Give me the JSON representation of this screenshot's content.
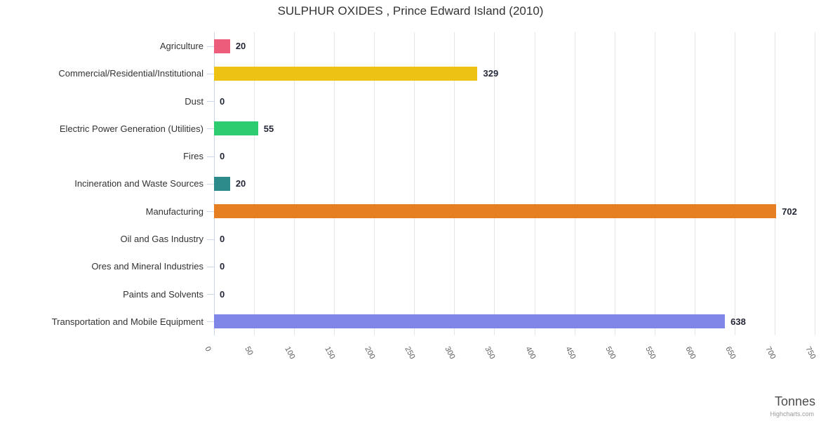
{
  "chart_data": {
    "type": "bar",
    "orientation": "horizontal",
    "title": "SULPHUR OXIDES , Prince Edward Island (2010)",
    "xlabel": "Tonnes",
    "ylabel": "",
    "xlim": [
      0,
      750
    ],
    "tick_interval": 50,
    "xticks": [
      0,
      50,
      100,
      150,
      200,
      250,
      300,
      350,
      400,
      450,
      500,
      550,
      600,
      650,
      700,
      750
    ],
    "grid": true,
    "legend": "none",
    "categories": [
      "Agriculture",
      "Commercial/Residential/Institutional",
      "Dust",
      "Electric Power Generation (Utilities)",
      "Fires",
      "Incineration and Waste Sources",
      "Manufacturing",
      "Oil and Gas Industry",
      "Ores and Mineral Industries",
      "Paints and Solvents",
      "Transportation and Mobile Equipment"
    ],
    "values": [
      20,
      329,
      0,
      55,
      0,
      20,
      702,
      0,
      0,
      0,
      638
    ],
    "bar_colors": [
      "#ED5C7B",
      "#EDC213",
      null,
      "#2ECC71",
      null,
      "#2E8B8B",
      "#E67E22",
      null,
      null,
      null,
      "#8085E8"
    ]
  },
  "credits": "Highcharts.com",
  "colors": {
    "grid": "#e6e6e6",
    "axis_line": "#ccd6eb",
    "category_label": "#333333",
    "value_label": "#252838",
    "tick_label": "#606060"
  }
}
